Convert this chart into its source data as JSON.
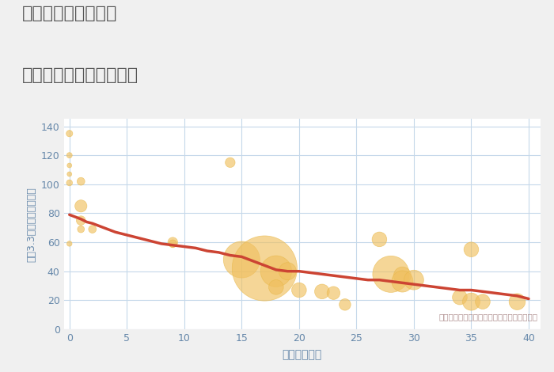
{
  "title_line1": "千葉県市原市風戸の",
  "title_line2": "築年数別中古戸建て価格",
  "xlabel": "築年数（年）",
  "ylabel": "坪（3.3㎡）単価（万円）",
  "annotation": "円の大きさは、取引のあった物件面積を示す",
  "bg_color": "#f0f0f0",
  "plot_bg_color": "#ffffff",
  "grid_color": "#c5d8ea",
  "title_color": "#555555",
  "label_color": "#6688aa",
  "tick_color": "#6688aa",
  "annotation_color": "#b09090",
  "bubble_color": "#f0c060",
  "bubble_alpha": 0.65,
  "bubble_edge_color": "#e8b848",
  "line_color": "#cc4433",
  "line_width": 2.5,
  "xlim": [
    -0.5,
    41
  ],
  "ylim": [
    0,
    145
  ],
  "xticks": [
    0,
    5,
    10,
    15,
    20,
    25,
    30,
    35,
    40
  ],
  "yticks": [
    0,
    20,
    40,
    60,
    80,
    100,
    120,
    140
  ],
  "scatter_x": [
    0,
    0,
    0,
    0,
    0,
    0,
    1,
    1,
    1,
    1,
    2,
    9,
    9,
    14,
    15,
    17,
    18,
    18,
    19,
    20,
    22,
    23,
    24,
    27,
    28,
    29,
    29,
    30,
    34,
    35,
    35,
    36,
    39
  ],
  "scatter_y": [
    135,
    120,
    113,
    107,
    101,
    59,
    102,
    85,
    75,
    69,
    69,
    60,
    59,
    115,
    48,
    42,
    40,
    29,
    40,
    27,
    26,
    25,
    17,
    62,
    38,
    37,
    33,
    34,
    22,
    55,
    19,
    19,
    19
  ],
  "scatter_size": [
    35,
    25,
    18,
    18,
    30,
    22,
    50,
    120,
    70,
    40,
    50,
    80,
    50,
    80,
    1100,
    3500,
    800,
    180,
    250,
    180,
    180,
    140,
    110,
    180,
    1100,
    250,
    380,
    320,
    180,
    180,
    250,
    180,
    220
  ],
  "trend_x": [
    0,
    0.5,
    1,
    1.5,
    2,
    3,
    4,
    5,
    6,
    7,
    8,
    9,
    10,
    11,
    12,
    13,
    14,
    15,
    16,
    17,
    18,
    19,
    20,
    21,
    22,
    23,
    24,
    25,
    26,
    27,
    28,
    29,
    30,
    31,
    32,
    33,
    34,
    35,
    36,
    37,
    38,
    39,
    40
  ],
  "trend_y": [
    79,
    77.5,
    76,
    74,
    73,
    70,
    67,
    65,
    63,
    61,
    59,
    58,
    57,
    56,
    54,
    53,
    51,
    50,
    47,
    44,
    41,
    40,
    40,
    39,
    38,
    37,
    36,
    35,
    34,
    34,
    33,
    32,
    31,
    30,
    29,
    28,
    27,
    27,
    26,
    25,
    24,
    23,
    21
  ]
}
